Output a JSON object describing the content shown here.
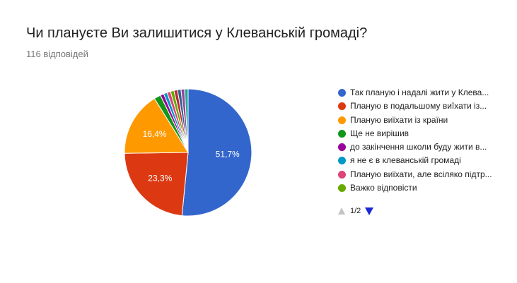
{
  "question": {
    "title": "Чи плануєте Ви залишитися у Клеванській громаді?",
    "responses": "116 відповідей"
  },
  "chart_data": {
    "type": "pie",
    "slices": [
      {
        "label": "Так планую і надалі жити у Клева...",
        "value": 51.7,
        "color": "#3366cc",
        "display": "51,7%"
      },
      {
        "label": "Планую в подальшому виїхати із...",
        "value": 23.3,
        "color": "#dc3912",
        "display": "23,3%"
      },
      {
        "label": "Планую виїхати із країни",
        "value": 16.4,
        "color": "#ff9900",
        "display": "16,4%"
      },
      {
        "label": "Ще не вирішив",
        "value": 1.7,
        "color": "#109618",
        "display": ""
      },
      {
        "label": "до закінчення школи буду жити в...",
        "value": 0.9,
        "color": "#990099",
        "display": ""
      },
      {
        "label": "я не є в клеванській громаді",
        "value": 0.9,
        "color": "#0099c6",
        "display": ""
      },
      {
        "label": "Планую виїхати, але всіляко підтр...",
        "value": 0.9,
        "color": "#dd4477",
        "display": ""
      },
      {
        "label": "Важко відповісти",
        "value": 0.9,
        "color": "#66aa00",
        "display": ""
      },
      {
        "label": "",
        "value": 0.9,
        "color": "#b82e2e",
        "display": ""
      },
      {
        "label": "",
        "value": 0.9,
        "color": "#316395",
        "display": ""
      },
      {
        "label": "",
        "value": 0.9,
        "color": "#994499",
        "display": ""
      },
      {
        "label": "",
        "value": 0.9,
        "color": "#22aa99",
        "display": ""
      }
    ],
    "start_angle_deg": 0,
    "direction": "clockwise",
    "legend_position": "right"
  },
  "legend": {
    "items": [
      {
        "label": "Так планую і надалі жити у Клева...",
        "color": "#3366cc"
      },
      {
        "label": "Планую в подальшому виїхати із...",
        "color": "#dc3912"
      },
      {
        "label": "Планую виїхати із країни",
        "color": "#ff9900"
      },
      {
        "label": "Ще не вирішив",
        "color": "#109618"
      },
      {
        "label": "до закінчення школи буду жити в...",
        "color": "#990099"
      },
      {
        "label": "я не є в клеванській громаді",
        "color": "#0099c6"
      },
      {
        "label": "Планую виїхати, але всіляко підтр...",
        "color": "#dd4477"
      },
      {
        "label": "Важко відповісти",
        "color": "#66aa00"
      }
    ],
    "pager": {
      "text": "1/2",
      "prev_icon": "triangle-up-icon",
      "next_icon": "triangle-down-icon"
    }
  }
}
